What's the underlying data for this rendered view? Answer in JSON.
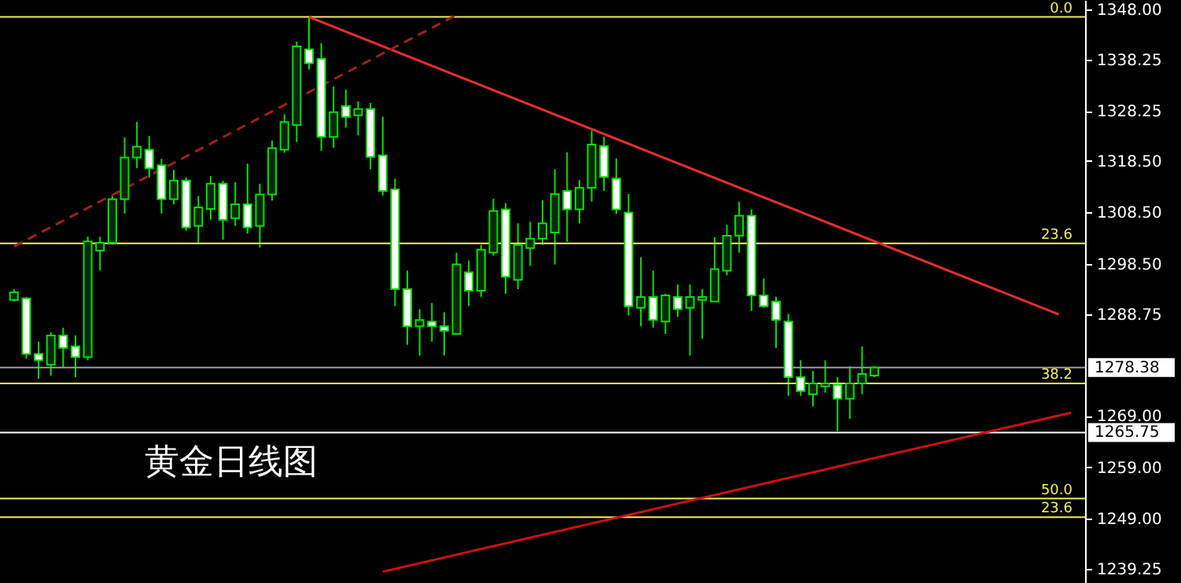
{
  "chart_data": {
    "type": "candlestick",
    "categories": [
      null,
      null,
      null,
      null,
      null,
      null,
      null,
      null,
      null,
      null,
      null,
      null,
      null,
      null,
      null,
      null,
      null,
      null,
      null,
      null,
      null,
      null,
      null,
      null,
      null,
      null,
      null,
      null,
      null,
      null,
      null,
      null,
      null,
      null,
      null,
      null,
      null,
      null,
      null,
      null,
      null,
      null,
      null,
      null,
      null,
      null,
      null,
      null,
      null,
      null,
      null,
      null,
      null,
      null,
      null,
      null,
      null,
      null,
      null,
      null,
      null,
      null,
      null,
      null,
      null,
      null,
      null,
      null,
      null,
      null,
      null,
      null,
      null,
      null,
      null,
      null,
      null,
      null,
      null,
      null,
      null,
      null,
      null,
      null,
      null,
      null,
      null
    ],
    "ohlc": [
      [
        1291.5,
        1293.6,
        1291.2,
        1293.0
      ],
      [
        1291.8,
        1292.1,
        1280.1,
        1281.0
      ],
      [
        1281.0,
        1283.4,
        1276.2,
        1279.8
      ],
      [
        1278.9,
        1285.2,
        1276.8,
        1284.6
      ],
      [
        1284.6,
        1286.1,
        1278.3,
        1282.2
      ],
      [
        1282.5,
        1284.6,
        1276.5,
        1280.4
      ],
      [
        1280.4,
        1303.8,
        1279.8,
        1302.9
      ],
      [
        1301.1,
        1303.8,
        1297.2,
        1302.6
      ],
      [
        1302.6,
        1311.7,
        1302.3,
        1311.1
      ],
      [
        1311.1,
        1323.1,
        1308.3,
        1319.2
      ],
      [
        1319.2,
        1326.1,
        1317.1,
        1321.3
      ],
      [
        1320.7,
        1323.4,
        1315.3,
        1317.1
      ],
      [
        1317.7,
        1318.9,
        1308.3,
        1311.1
      ],
      [
        1311.1,
        1316.8,
        1310.1,
        1314.7
      ],
      [
        1314.7,
        1315.3,
        1305.0,
        1305.6
      ],
      [
        1305.9,
        1311.7,
        1302.3,
        1309.5
      ],
      [
        1309.2,
        1315.6,
        1307.1,
        1314.1
      ],
      [
        1314.1,
        1314.7,
        1303.2,
        1307.1
      ],
      [
        1307.4,
        1314.4,
        1305.9,
        1310.1
      ],
      [
        1310.1,
        1318.0,
        1304.4,
        1305.6
      ],
      [
        1305.9,
        1314.1,
        1301.7,
        1312.0
      ],
      [
        1312.0,
        1322.5,
        1310.8,
        1321.0
      ],
      [
        1320.7,
        1327.6,
        1320.1,
        1326.1
      ],
      [
        1325.5,
        1341.7,
        1322.2,
        1340.8
      ],
      [
        1340.2,
        1346.5,
        1336.3,
        1337.5
      ],
      [
        1338.4,
        1341.4,
        1320.5,
        1323.2
      ],
      [
        1323.2,
        1333.0,
        1321.1,
        1328.0
      ],
      [
        1329.2,
        1332.4,
        1325.0,
        1327.1
      ],
      [
        1327.4,
        1330.1,
        1323.5,
        1328.6
      ],
      [
        1328.6,
        1329.8,
        1316.9,
        1319.3
      ],
      [
        1319.6,
        1327.1,
        1311.8,
        1312.7
      ],
      [
        1313.0,
        1315.1,
        1290.3,
        1293.6
      ],
      [
        1293.6,
        1297.2,
        1282.8,
        1286.4
      ],
      [
        1286.4,
        1289.7,
        1280.7,
        1287.6
      ],
      [
        1287.3,
        1290.9,
        1283.4,
        1286.4
      ],
      [
        1286.4,
        1289.1,
        1280.7,
        1285.5
      ],
      [
        1284.9,
        1300.7,
        1284.9,
        1298.4
      ],
      [
        1296.9,
        1299.2,
        1290.3,
        1293.3
      ],
      [
        1293.3,
        1302.2,
        1292.1,
        1301.3
      ],
      [
        1300.7,
        1311.2,
        1300.1,
        1308.8
      ],
      [
        1309.1,
        1310.3,
        1292.7,
        1296.0
      ],
      [
        1295.4,
        1306.4,
        1293.6,
        1302.2
      ],
      [
        1301.6,
        1306.7,
        1298.1,
        1303.4
      ],
      [
        1303.4,
        1310.9,
        1302.2,
        1306.4
      ],
      [
        1304.6,
        1316.9,
        1298.4,
        1312.1
      ],
      [
        1312.7,
        1320.2,
        1302.8,
        1309.1
      ],
      [
        1309.1,
        1314.8,
        1306.4,
        1313.3
      ],
      [
        1313.3,
        1324.4,
        1310.6,
        1321.7
      ],
      [
        1321.4,
        1323.2,
        1312.7,
        1315.4
      ],
      [
        1315.1,
        1319.0,
        1308.2,
        1309.1
      ],
      [
        1308.5,
        1312.1,
        1288.5,
        1290.3
      ],
      [
        1290.0,
        1299.8,
        1286.4,
        1292.1
      ],
      [
        1292.1,
        1297.2,
        1286.1,
        1287.6
      ],
      [
        1287.3,
        1292.7,
        1284.9,
        1292.4
      ],
      [
        1292.1,
        1294.5,
        1288.2,
        1289.7
      ],
      [
        1290.0,
        1294.5,
        1280.7,
        1292.1
      ],
      [
        1291.5,
        1293.6,
        1284.0,
        1292.1
      ],
      [
        1291.2,
        1303.7,
        1291.2,
        1297.5
      ],
      [
        1297.2,
        1306.1,
        1296.3,
        1304.0
      ],
      [
        1304.0,
        1310.6,
        1300.7,
        1307.9
      ],
      [
        1307.9,
        1309.1,
        1289.4,
        1292.4
      ],
      [
        1292.4,
        1295.7,
        1290.0,
        1290.3
      ],
      [
        1291.2,
        1292.1,
        1282.2,
        1287.6
      ],
      [
        1287.3,
        1288.8,
        1272.9,
        1276.5
      ],
      [
        1276.5,
        1279.8,
        1272.9,
        1273.8
      ],
      [
        1273.2,
        1277.7,
        1270.8,
        1275.3
      ],
      [
        1274.7,
        1279.8,
        1273.5,
        1275.3
      ],
      [
        1275.0,
        1276.5,
        1266.0,
        1272.3
      ],
      [
        1272.3,
        1278.6,
        1268.4,
        1275.3
      ],
      [
        1275.3,
        1282.5,
        1273.2,
        1277.1
      ],
      [
        1276.8,
        1278.6,
        1276.5,
        1278.38
      ],
      null,
      null,
      null,
      null,
      null,
      null,
      null,
      null,
      null,
      null,
      null,
      null,
      null,
      null,
      null,
      null
    ],
    "series": [
      {
        "type": "line",
        "color": "#e8302c",
        "values": [
          null,
          null,
          null,
          null,
          null,
          null,
          null,
          null,
          null,
          null,
          null,
          null,
          null,
          null,
          null,
          null,
          null,
          null,
          null,
          null,
          null,
          null,
          null,
          null,
          1346.5,
          null,
          null,
          null,
          null,
          null,
          null,
          null,
          null,
          null,
          null,
          null,
          null,
          null,
          null,
          null,
          null,
          null,
          null,
          null,
          null,
          null,
          null,
          null,
          null,
          null,
          null,
          null,
          null,
          null,
          null,
          null,
          null,
          null,
          null,
          null,
          null,
          null,
          null,
          null,
          null,
          null,
          null,
          null,
          null,
          null,
          null,
          null,
          null,
          null,
          null,
          null,
          null,
          null,
          null,
          null,
          null,
          null,
          null,
          null,
          null,
          1288.7,
          null
        ]
      },
      {
        "type": "line",
        "color": "#a02020",
        "line_style": "dashed",
        "values": [
          1301.9,
          null,
          null,
          null,
          null,
          null,
          null,
          null,
          null,
          null,
          null,
          null,
          null,
          null,
          null,
          null,
          null,
          null,
          null,
          null,
          null,
          null,
          null,
          null,
          null,
          null,
          null,
          null,
          null,
          null,
          null,
          null,
          null,
          null,
          null,
          null,
          1346.9,
          null,
          null,
          null,
          null,
          null,
          null,
          null,
          null,
          null,
          null,
          null,
          null,
          null,
          null,
          null,
          null,
          null,
          null,
          null,
          null,
          null,
          null,
          null,
          null,
          null,
          null,
          null,
          null,
          null,
          null,
          null,
          null,
          null,
          null,
          null,
          null,
          null,
          null,
          null,
          null,
          null,
          null,
          null,
          null,
          null,
          null,
          null,
          null,
          null,
          null
        ]
      },
      {
        "type": "line",
        "color": "#d01010",
        "values": [
          null,
          null,
          null,
          null,
          null,
          null,
          null,
          null,
          null,
          null,
          null,
          null,
          null,
          null,
          null,
          null,
          null,
          null,
          null,
          null,
          null,
          null,
          null,
          null,
          null,
          null,
          null,
          null,
          null,
          null,
          1238.7,
          null,
          null,
          null,
          null,
          null,
          null,
          null,
          null,
          null,
          null,
          null,
          null,
          null,
          null,
          null,
          null,
          null,
          null,
          null,
          null,
          null,
          null,
          null,
          null,
          null,
          null,
          null,
          null,
          null,
          null,
          null,
          null,
          null,
          null,
          null,
          null,
          null,
          null,
          null,
          null,
          null,
          null,
          null,
          null,
          null,
          null,
          null,
          null,
          null,
          null,
          null,
          null,
          null,
          null,
          null,
          1269.6
        ]
      }
    ],
    "ref_lines": [
      {
        "axis": "y",
        "value": 1346.5,
        "color": "#f0f060"
      },
      {
        "axis": "y",
        "value": 1302.5,
        "color": "#f0f060"
      },
      {
        "axis": "y",
        "value": 1275.3,
        "color": "#f0f060"
      },
      {
        "axis": "y",
        "value": 1252.9,
        "color": "#f0f060"
      },
      {
        "axis": "y",
        "value": 1249.3,
        "color": "#f0f060"
      },
      {
        "axis": "y",
        "value": 1278.38,
        "label": "1278.38",
        "color": "#9a9aaa"
      },
      {
        "axis": "y",
        "value": 1265.75,
        "label": "1265.75",
        "color": "#ffffff"
      }
    ],
    "annotations": [
      "黄金日线图",
      {
        "text": "0.0",
        "y": 1346.5
      },
      {
        "text": "23.6",
        "y": 1302.5
      },
      {
        "text": "38.2",
        "y": 1275.3
      },
      {
        "text": "50.0",
        "y": 1252.9
      },
      {
        "text": "23.6",
        "y": 1249.3
      }
    ],
    "ylim": [
      1236.5,
      1349.8
    ],
    "yticks": [
      {
        "value": 1348,
        "label": "1348.00"
      },
      1338.25,
      1328.25,
      {
        "value": 1318.5,
        "label": "1318.50"
      },
      {
        "value": 1308.5,
        "label": "1308.50"
      },
      {
        "value": 1298.5,
        "label": "1298.50"
      },
      1288.75,
      {
        "value": 1269,
        "label": "1269.00"
      },
      {
        "value": 1259,
        "label": "1259.00"
      },
      {
        "value": 1249,
        "label": "1249.00"
      },
      1239.25
    ],
    "tick_labels": "y",
    "grid": false
  }
}
